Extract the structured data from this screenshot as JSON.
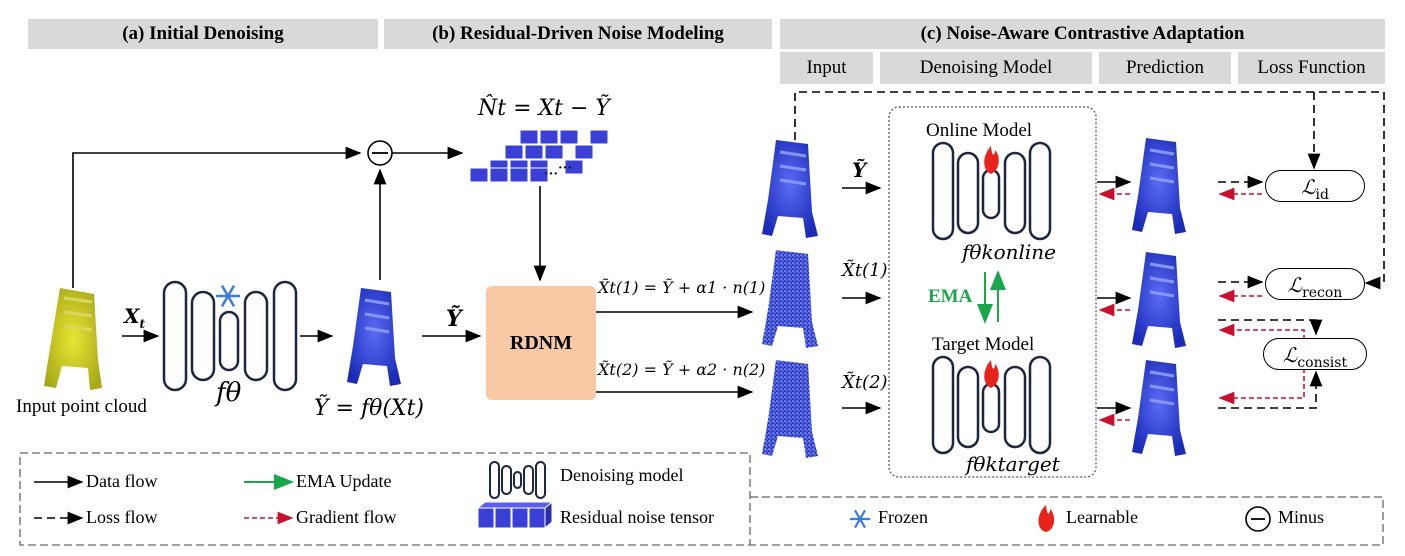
{
  "headers": {
    "a": "(a) Initial Denoising",
    "b": "(b) Residual-Driven Noise Modeling",
    "c": "(c) Noise-Aware Contrastive Adaptation"
  },
  "subheaders": {
    "input": "Input",
    "model": "Denoising Model",
    "prediction": "Prediction",
    "loss": "Loss Function"
  },
  "labels": {
    "input_point_cloud": "Input point cloud",
    "x_t": "X",
    "x_t_sub": "t",
    "f_theta": "fθ",
    "y_eq": "Ỹ = fθ(Xt)",
    "y_tilde": "Ỹ",
    "noise_eq": "N̂t = Xt − Ỹ",
    "rdnm": "RDNM",
    "eq1": "X̃t(1) = Ỹ + α1 · n(1)",
    "eq2": "X̃t(2) = Ỹ + α2 · n(2)",
    "in_y": "Ỹ",
    "in_x1": "X̃t(1)",
    "in_x2": "X̃t(2)",
    "online_model": "Online Model",
    "target_model": "Target Model",
    "f_online": "fθkonline",
    "f_target": "fθktarget",
    "ema": "EMA"
  },
  "losses": {
    "id": "id",
    "recon": "recon",
    "consist": "consist"
  },
  "legend": {
    "data_flow": "Data flow",
    "loss_flow": "Loss flow",
    "ema_update": "EMA Update",
    "gradient_flow": "Gradient flow",
    "denoising_model": "Denoising model",
    "residual_noise_tensor": "Residual noise tensor",
    "frozen": "Frozen",
    "learnable": "Learnable",
    "minus": "Minus"
  },
  "colors": {
    "header_bg": "#d9d9d9",
    "rdnm_fill": "#f9c9a6",
    "ema_green": "#1aa64a",
    "gradient_red": "#c8102e",
    "cube_blue": "#3a3fd6",
    "frozen_blue": "#3a7be0",
    "flame_red": "#e8231b"
  }
}
